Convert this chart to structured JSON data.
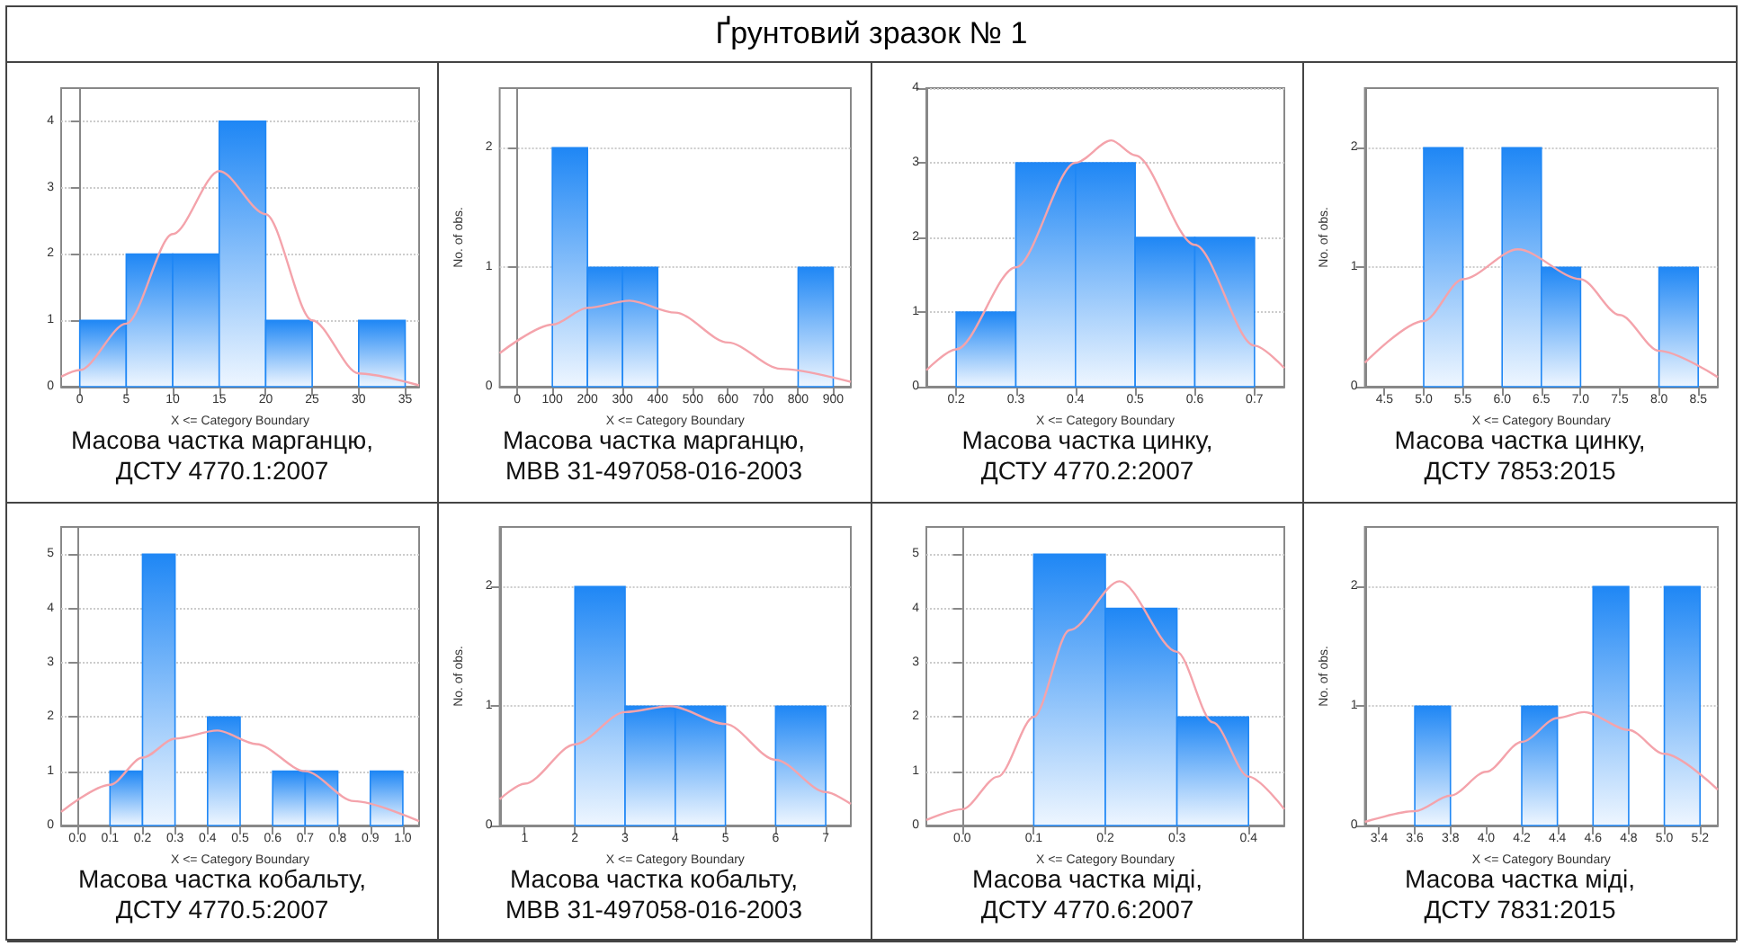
{
  "chart_data": [
    {
      "type": "other",
      "title": "Ґрунтовий зразок № 1"
    },
    {
      "type": "histogram",
      "title": "Масова частка марганцю,\nДСТУ 4770.1:2007",
      "xlabel": "X <= Category Boundary",
      "xlim": [
        -2,
        36.5
      ],
      "xticks": [
        0,
        5,
        10,
        15,
        20,
        25,
        30,
        35
      ],
      "ylim": [
        0,
        4.5
      ],
      "yticks": [
        0,
        1,
        2,
        3,
        4
      ],
      "grid": "y",
      "series": [
        {
          "type": "histogram",
          "color": "#1f87f5",
          "bins": [
            0,
            5,
            10,
            15,
            20,
            25,
            30,
            35
          ],
          "values": [
            1,
            2,
            2,
            4,
            1,
            0,
            1
          ]
        },
        {
          "type": "line",
          "color": "#f4a3ab",
          "marker": "none",
          "x": [
            -2,
            0,
            5,
            10,
            15,
            20,
            25,
            30,
            36.5
          ],
          "values": [
            0.15,
            0.25,
            0.95,
            2.3,
            3.25,
            2.6,
            1.0,
            0.2,
            0.02
          ]
        }
      ]
    },
    {
      "type": "histogram",
      "title": "Масова частка марганцю,\nМВВ 31-497058-016-2003",
      "xlabel": "X <= Category Boundary",
      "ylabel": "No. of obs.",
      "xlim": [
        -50,
        950
      ],
      "xticks": [
        0,
        100,
        200,
        300,
        400,
        500,
        600,
        700,
        800,
        900
      ],
      "ylim": [
        0,
        2.5
      ],
      "yticks": [
        0,
        1,
        2
      ],
      "grid": "y",
      "series": [
        {
          "type": "histogram",
          "color": "#1f87f5",
          "bins": [
            100,
            200,
            300,
            400,
            500,
            600,
            700,
            800,
            900
          ],
          "values": [
            2,
            1,
            1,
            0,
            0,
            0,
            0,
            1
          ]
        },
        {
          "type": "line",
          "color": "#f4a3ab",
          "marker": "none",
          "x": [
            -50,
            100,
            200,
            320,
            450,
            600,
            750,
            950
          ],
          "values": [
            0.28,
            0.52,
            0.66,
            0.72,
            0.62,
            0.37,
            0.15,
            0.04
          ]
        }
      ]
    },
    {
      "type": "histogram",
      "title": "Масова частка цинку,\nДСТУ 4770.2:2007",
      "xlabel": "X <= Category Boundary",
      "xlim": [
        0.15,
        0.75
      ],
      "xticks": [
        0.2,
        0.3,
        0.4,
        0.5,
        0.6,
        0.7
      ],
      "ylim": [
        0,
        4
      ],
      "yticks": [
        0,
        1,
        2,
        3,
        4
      ],
      "grid": "y",
      "series": [
        {
          "type": "histogram",
          "color": "#1f87f5",
          "bins": [
            0.2,
            0.3,
            0.4,
            0.5,
            0.6,
            0.7
          ],
          "values": [
            1,
            3,
            3,
            2,
            2
          ]
        },
        {
          "type": "line",
          "color": "#f4a3ab",
          "marker": "none",
          "x": [
            0.15,
            0.2,
            0.3,
            0.4,
            0.46,
            0.5,
            0.6,
            0.7,
            0.75
          ],
          "values": [
            0.22,
            0.5,
            1.6,
            3.0,
            3.3,
            3.1,
            1.9,
            0.55,
            0.25
          ]
        }
      ]
    },
    {
      "type": "histogram",
      "title": "Масова частка цинку,\nДСТУ 7853:2015",
      "xlabel": "X <= Category Boundary",
      "ylabel": "No. of obs.",
      "xlim": [
        4.25,
        8.75
      ],
      "xticks": [
        4.5,
        {
          "value": 5,
          "label": "5.0"
        },
        5.5,
        {
          "value": 6,
          "label": "6.0"
        },
        6.5,
        {
          "value": 7,
          "label": "7.0"
        },
        7.5,
        {
          "value": 8,
          "label": "8.0"
        },
        8.5
      ],
      "ylim": [
        0,
        2.5
      ],
      "yticks": [
        0,
        1,
        2
      ],
      "grid": "y",
      "series": [
        {
          "type": "histogram",
          "color": "#1f87f5",
          "bins": [
            5,
            5.5,
            6,
            6.5,
            7,
            7.5,
            8,
            8.5
          ],
          "values": [
            2,
            0,
            2,
            1,
            0,
            0,
            1
          ]
        },
        {
          "type": "line",
          "color": "#f4a3ab",
          "marker": "none",
          "x": [
            4.25,
            5,
            5.5,
            6.2,
            7,
            7.5,
            8,
            8.75
          ],
          "values": [
            0.2,
            0.55,
            0.9,
            1.15,
            0.9,
            0.6,
            0.3,
            0.08
          ]
        }
      ]
    },
    {
      "type": "histogram",
      "title": "Масова частка кобальту,\nДСТУ 4770.5:2007",
      "xlabel": "X <= Category Boundary",
      "xlim": [
        -0.05,
        1.05
      ],
      "xticks": [
        {
          "value": 0,
          "label": "0.0"
        },
        0.1,
        0.2,
        0.3,
        0.4,
        0.5,
        0.6,
        0.7,
        0.8,
        0.9,
        {
          "value": 1,
          "label": "1.0"
        }
      ],
      "ylim": [
        0,
        5.5
      ],
      "yticks": [
        0,
        1,
        2,
        3,
        4,
        5
      ],
      "grid": "y",
      "series": [
        {
          "type": "histogram",
          "color": "#1f87f5",
          "bins": [
            0.1,
            0.2,
            0.3,
            0.4,
            0.5,
            0.6,
            0.7,
            0.8,
            0.9,
            1.0
          ],
          "values": [
            1,
            5,
            0,
            2,
            0,
            1,
            1,
            0,
            1
          ]
        },
        {
          "type": "line",
          "color": "#f4a3ab",
          "marker": "none",
          "x": [
            -0.05,
            0.1,
            0.2,
            0.3,
            0.43,
            0.55,
            0.7,
            0.85,
            1.05
          ],
          "values": [
            0.25,
            0.75,
            1.25,
            1.6,
            1.75,
            1.5,
            1.0,
            0.45,
            0.08
          ]
        }
      ]
    },
    {
      "type": "histogram",
      "title": "Масова частка кобальту,\nМВВ 31-497058-016-2003",
      "xlabel": "X <= Category Boundary",
      "ylabel": "No. of obs.",
      "xlim": [
        0.5,
        7.5
      ],
      "xticks": [
        1,
        2,
        3,
        4,
        5,
        6,
        7
      ],
      "ylim": [
        0,
        2.5
      ],
      "yticks": [
        0,
        1,
        2
      ],
      "grid": "y",
      "series": [
        {
          "type": "histogram",
          "color": "#1f87f5",
          "bins": [
            2,
            3,
            4,
            5,
            6,
            7
          ],
          "values": [
            2,
            1,
            1,
            0,
            1
          ]
        },
        {
          "type": "line",
          "color": "#f4a3ab",
          "marker": "none",
          "x": [
            0.5,
            1,
            2,
            3,
            3.9,
            5,
            6,
            7,
            7.5
          ],
          "values": [
            0.22,
            0.35,
            0.68,
            0.95,
            1.0,
            0.85,
            0.55,
            0.28,
            0.18
          ]
        }
      ]
    },
    {
      "type": "histogram",
      "title": "Масова частка міді,\nДСТУ 4770.6:2007",
      "xlabel": "X <= Category Boundary",
      "xlim": [
        -0.05,
        0.45
      ],
      "xticks": [
        {
          "value": 0,
          "label": "0.0"
        },
        0.1,
        0.2,
        0.3,
        0.4
      ],
      "ylim": [
        0,
        5.5
      ],
      "yticks": [
        0,
        1,
        2,
        3,
        4,
        5
      ],
      "grid": "y",
      "series": [
        {
          "type": "histogram",
          "color": "#1f87f5",
          "bins": [
            0.1,
            0.2,
            0.3,
            0.4
          ],
          "values": [
            5,
            4,
            2
          ]
        },
        {
          "type": "line",
          "color": "#f4a3ab",
          "marker": "none",
          "x": [
            -0.05,
            0,
            0.05,
            0.1,
            0.15,
            0.22,
            0.3,
            0.35,
            0.4,
            0.45
          ],
          "values": [
            0.1,
            0.3,
            0.9,
            2.0,
            3.6,
            4.5,
            3.2,
            1.9,
            0.9,
            0.3
          ]
        }
      ]
    },
    {
      "type": "histogram",
      "title": "Масова частка міді,\nДСТУ 7831:2015",
      "xlabel": "X <= Category Boundary",
      "ylabel": "No. of obs.",
      "xlim": [
        3.32,
        5.3
      ],
      "xticks": [
        3.4,
        3.6,
        3.8,
        {
          "value": 4,
          "label": "4.0"
        },
        4.2,
        4.4,
        4.6,
        4.8,
        {
          "value": 5,
          "label": "5.0"
        },
        5.2
      ],
      "ylim": [
        0,
        2.5
      ],
      "yticks": [
        0,
        1,
        2
      ],
      "grid": "y",
      "series": [
        {
          "type": "histogram",
          "color": "#1f87f5",
          "bins": [
            3.6,
            3.8,
            4.0,
            4.2,
            4.4,
            4.6,
            4.8,
            5.0,
            5.2
          ],
          "values": [
            1,
            0,
            0,
            1,
            0,
            2,
            0,
            2
          ]
        },
        {
          "type": "line",
          "color": "#f4a3ab",
          "marker": "none",
          "x": [
            3.32,
            3.6,
            3.8,
            4.0,
            4.2,
            4.4,
            4.55,
            4.8,
            5.0,
            5.3
          ],
          "values": [
            0.03,
            0.12,
            0.25,
            0.45,
            0.7,
            0.9,
            0.95,
            0.8,
            0.6,
            0.3
          ]
        }
      ]
    }
  ]
}
